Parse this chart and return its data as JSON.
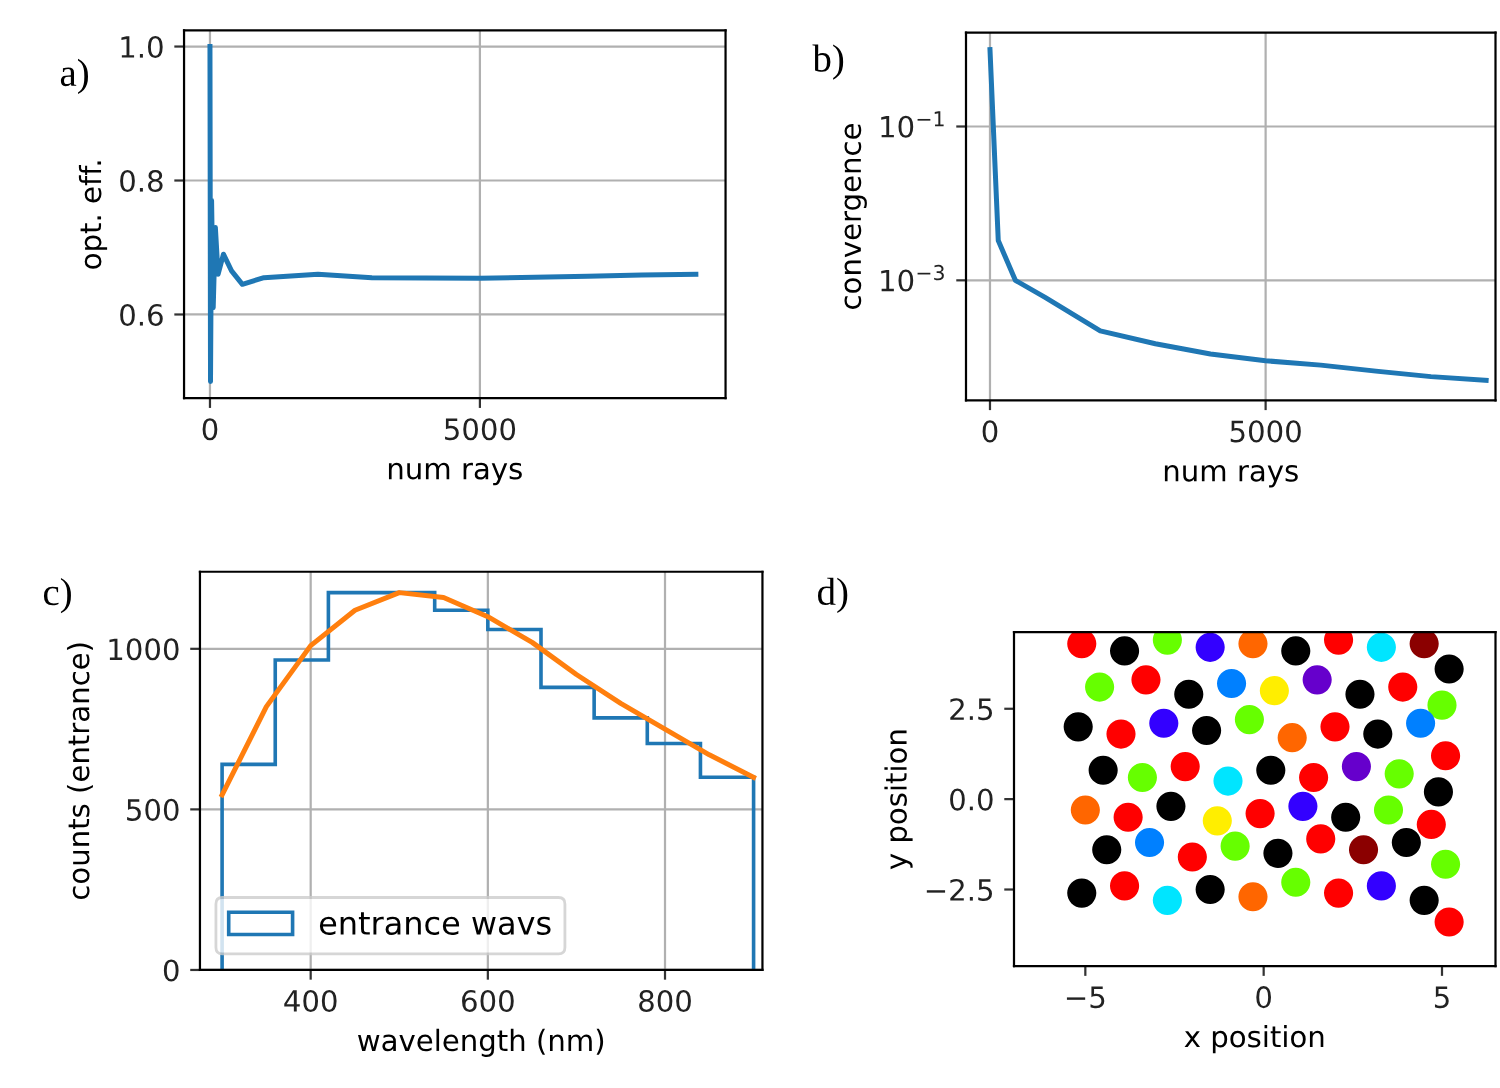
{
  "chart_data": [
    {
      "type": "line",
      "title": "a)",
      "xlabel": "num rays",
      "ylabel": "opt. eff.",
      "xlim": [
        -480,
        9550
      ],
      "ylim": [
        0.475,
        1.024
      ],
      "xticks": [
        0,
        5000
      ],
      "yticks": [
        0.6,
        0.8,
        {
          "value": 1,
          "label": "1.0"
        }
      ],
      "grid": true,
      "series": [
        {
          "color": "#1f77b4",
          "x": [
            0,
            10,
            30,
            60,
            100,
            150,
            250,
            400,
            600,
            1000,
            2000,
            3000,
            5000,
            7000,
            8000,
            9000
          ],
          "values": [
            1.0,
            0.5,
            0.77,
            0.61,
            0.73,
            0.66,
            0.69,
            0.665,
            0.645,
            0.655,
            0.66,
            0.655,
            0.654,
            0.657,
            0.659,
            0.66
          ]
        }
      ]
    },
    {
      "type": "line",
      "title": "b)",
      "xlabel": "num rays",
      "ylabel": "convergence",
      "log": "y",
      "xlim": [
        -435,
        9170
      ],
      "ylim": [
        2.75e-05,
        1.66
      ],
      "xticks": [
        0,
        5000
      ],
      "yticks": [
        {
          "value": 0.1,
          "label": "10$^{−1}$"
        },
        {
          "value": 0.001,
          "label": "10$^{−3}$"
        }
      ],
      "grid": true,
      "series": [
        {
          "color": "#1f77b4",
          "x": [
            0,
            150,
            460,
            1000,
            2000,
            3000,
            4000,
            5000,
            6000,
            7000,
            8000,
            9000
          ],
          "values": [
            1.0,
            0.0033,
            0.001,
            0.0006,
            0.00022,
            0.00015,
            0.00011,
            9e-05,
            7.9e-05,
            6.6e-05,
            5.6e-05,
            5e-05
          ]
        }
      ]
    },
    {
      "type": "histogram",
      "title": "c)",
      "xlabel": "wavelength (nm)",
      "ylabel": "counts (entrance)",
      "xlim": [
        275,
        910
      ],
      "ylim": [
        0,
        1240
      ],
      "xticks": [
        400,
        600,
        800
      ],
      "yticks": [
        0,
        500,
        1000
      ],
      "grid": true,
      "legend": "bottom left",
      "series": [
        {
          "type": "histogram",
          "name": "entrance wavs",
          "color": "#1f77b4",
          "bins": [
            300,
            360,
            420,
            480,
            540,
            600,
            660,
            720,
            780,
            840,
            900
          ],
          "values": [
            640,
            965,
            1175,
            1175,
            1120,
            1060,
            880,
            785,
            705,
            600
          ]
        },
        {
          "type": "line",
          "color": "#ff7f0e",
          "x": [
            300,
            350,
            400,
            450,
            500,
            550,
            600,
            650,
            700,
            750,
            800,
            850,
            900
          ],
          "values": [
            545,
            820,
            1010,
            1120,
            1175,
            1160,
            1100,
            1020,
            920,
            830,
            750,
            670,
            600
          ]
        }
      ]
    },
    {
      "type": "scatter",
      "title": "d)",
      "xlabel": "x position",
      "ylabel": "y position",
      "xlim": [
        -7,
        6.5
      ],
      "ylim": [
        -4.62,
        4.62
      ],
      "xticks": [
        {
          "value": -5,
          "label": "−5"
        },
        0,
        5
      ],
      "yticks": [
        {
          "value": -2.5,
          "label": "−2.5"
        },
        {
          "value": 0,
          "label": "0.0"
        },
        2.5
      ],
      "x": [
        -5.1,
        -3.9,
        -2.7,
        -1.5,
        -0.3,
        0.9,
        2.1,
        3.3,
        4.5,
        5.2,
        -4.6,
        -3.3,
        -2.1,
        -0.9,
        0.3,
        1.5,
        2.7,
        3.9,
        5.0,
        -5.2,
        -4.0,
        -2.8,
        -1.6,
        -0.4,
        0.8,
        2.0,
        3.2,
        4.4,
        5.1,
        -4.5,
        -3.4,
        -2.2,
        -1.0,
        0.2,
        1.4,
        2.6,
        3.8,
        4.9,
        -5.0,
        -3.8,
        -2.6,
        -1.3,
        -0.1,
        1.1,
        2.3,
        3.5,
        4.7,
        -4.4,
        -3.2,
        -2.0,
        -0.8,
        0.4,
        1.6,
        2.8,
        4.0,
        5.1,
        -5.1,
        -3.9,
        -2.7,
        -1.5,
        -0.3,
        0.9,
        2.1,
        3.3,
        4.5,
        5.2
      ],
      "values": [
        4.3,
        4.1,
        4.4,
        4.2,
        4.3,
        4.1,
        4.4,
        4.2,
        4.3,
        3.6,
        3.1,
        3.3,
        2.9,
        3.2,
        3.0,
        3.3,
        2.9,
        3.1,
        2.6,
        2.0,
        1.8,
        2.1,
        1.9,
        2.2,
        1.7,
        2.0,
        1.8,
        2.1,
        1.2,
        0.8,
        0.6,
        0.9,
        0.5,
        0.8,
        0.6,
        0.9,
        0.7,
        0.2,
        -0.3,
        -0.5,
        -0.2,
        -0.6,
        -0.4,
        -0.2,
        -0.5,
        -0.3,
        -0.7,
        -1.4,
        -1.2,
        -1.6,
        -1.3,
        -1.5,
        -1.1,
        -1.4,
        -1.2,
        -1.8,
        -2.6,
        -2.4,
        -2.8,
        -2.5,
        -2.7,
        -2.3,
        -2.6,
        -2.4,
        -2.8,
        -3.4
      ],
      "colors": [
        "#ff0000",
        "#000000",
        "#66ff00",
        "#3300ff",
        "#ff6600",
        "#000000",
        "#ff0000",
        "#00e5ff",
        "#8b0000",
        "#000000",
        "#66ff00",
        "#ff0000",
        "#000000",
        "#0080ff",
        "#ffee00",
        "#6600cc",
        "#000000",
        "#ff0000",
        "#66ff00",
        "#000000",
        "#ff0000",
        "#3300ff",
        "#000000",
        "#66ff00",
        "#ff6600",
        "#ff0000",
        "#000000",
        "#0080ff",
        "#ff0000",
        "#000000",
        "#66ff00",
        "#ff0000",
        "#00e5ff",
        "#000000",
        "#ff0000",
        "#6600cc",
        "#66ff00",
        "#000000",
        "#ff6600",
        "#ff0000",
        "#000000",
        "#ffee00",
        "#ff0000",
        "#3300ff",
        "#000000",
        "#66ff00",
        "#ff0000",
        "#000000",
        "#0080ff",
        "#ff0000",
        "#66ff00",
        "#000000",
        "#ff0000",
        "#8b0000",
        "#000000",
        "#66ff00",
        "#000000",
        "#ff0000",
        "#00e5ff",
        "#000000",
        "#ff6600",
        "#66ff00",
        "#ff0000",
        "#3300ff",
        "#000000",
        "#ff0000"
      ]
    }
  ]
}
